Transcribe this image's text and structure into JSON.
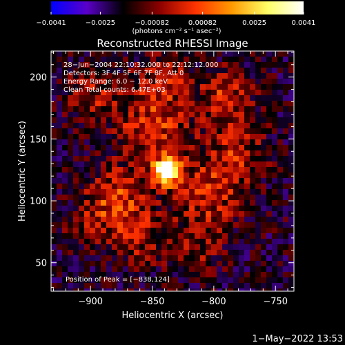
{
  "chart_data": {
    "type": "heatmap",
    "title": "Reconstructed RHESSI Image",
    "xlabel": "Heliocentric X (arcsec)",
    "ylabel": "Heliocentric Y (arcsec)",
    "xlim": [
      -932,
      -735
    ],
    "ylim": [
      27,
      221
    ],
    "xticks": [
      -900,
      -850,
      -800,
      -750
    ],
    "xtick_labels": [
      "−900",
      "−850",
      "−800",
      "−750"
    ],
    "yticks": [
      50,
      100,
      150,
      200
    ],
    "ytick_labels": [
      "50",
      "100",
      "150",
      "200"
    ],
    "colorbar": {
      "range": [
        -0.0041,
        0.0041
      ],
      "ticks": [
        -0.0041,
        -0.0025,
        -0.00082,
        0.00082,
        0.0025,
        0.0041
      ],
      "tick_labels": [
        "−0.0041",
        "−0.0025",
        "−0.00082",
        "0.00082",
        "0.0025",
        "0.0041"
      ],
      "unit_label": "(photons cm⁻² s⁻¹ asec⁻²)",
      "colors": [
        "#0000ff",
        "#5a00c8",
        "#000000",
        "#8b0000",
        "#ff3300",
        "#ff9900",
        "#ffff66",
        "#ffffff"
      ]
    },
    "annotations": [
      "28−Jun−2004 22:10:32.000 to 22:12:12.000",
      "Detectors: 3F 4F 5F 6F 7F 8F, Att 0",
      "Energy Range: 6.0 − 12.0 keV",
      "Clean     Total counts: 6.47E+03"
    ],
    "peak_label": "Position of Peak = [−838,124]",
    "peak": [
      -838,
      124
    ],
    "sources": [
      {
        "x": -838,
        "y": 124,
        "sigma": 8,
        "amp": 1.0
      },
      {
        "x": -850,
        "y": 160,
        "sigma": 22,
        "amp": 0.45
      },
      {
        "x": -880,
        "y": 100,
        "sigma": 18,
        "amp": 0.5
      },
      {
        "x": -805,
        "y": 105,
        "sigma": 20,
        "amp": 0.42
      },
      {
        "x": -780,
        "y": 140,
        "sigma": 18,
        "amp": 0.35
      },
      {
        "x": -790,
        "y": 185,
        "sigma": 15,
        "amp": 0.4
      },
      {
        "x": -840,
        "y": 200,
        "sigma": 15,
        "amp": 0.35
      },
      {
        "x": -900,
        "y": 185,
        "sigma": 14,
        "amp": 0.35
      },
      {
        "x": -860,
        "y": 70,
        "sigma": 16,
        "amp": 0.3
      },
      {
        "x": -815,
        "y": 60,
        "sigma": 15,
        "amp": 0.25
      },
      {
        "x": -905,
        "y": 80,
        "sigma": 10,
        "amp": 0.25
      }
    ]
  },
  "footer": {
    "timestamp": "1−May−2022 13:53"
  }
}
